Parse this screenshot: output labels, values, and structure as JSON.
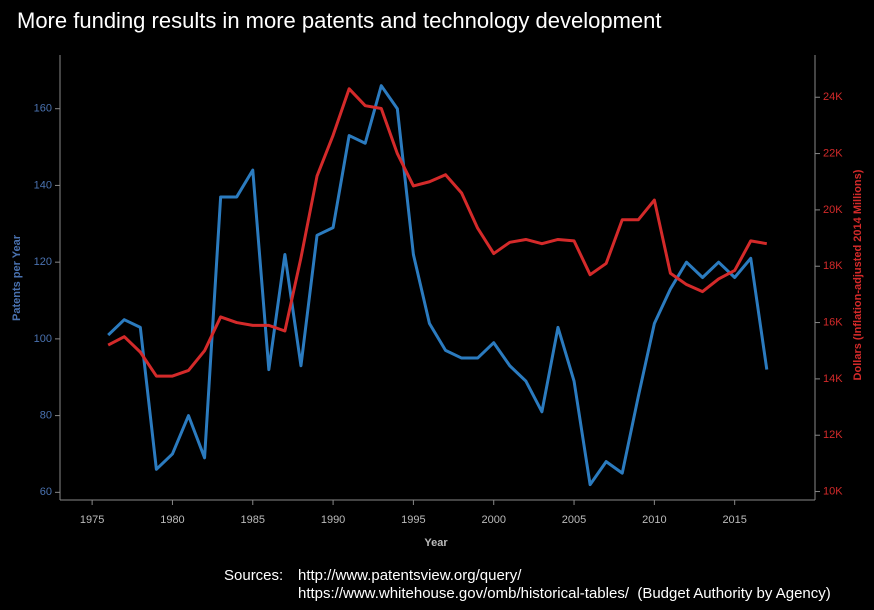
{
  "chart_data": {
    "type": "line",
    "title": "More funding results in more patents and technology development",
    "x_label": "Year",
    "y_label": "Patents per Year",
    "y2_label": "Dollars (Inflation-adjusted 2014 Millions)",
    "x": [
      1976,
      1977,
      1978,
      1979,
      1980,
      1981,
      1982,
      1983,
      1984,
      1985,
      1986,
      1987,
      1988,
      1989,
      1990,
      1991,
      1992,
      1993,
      1994,
      1995,
      1996,
      1997,
      1998,
      1999,
      2000,
      2001,
      2002,
      2003,
      2004,
      2005,
      2006,
      2007,
      2008,
      2009,
      2010,
      2011,
      2012,
      2013,
      2014,
      2015,
      2016,
      2017
    ],
    "series": [
      {
        "color": "#2b7bbf",
        "axis": "y",
        "values": [
          101,
          105,
          103,
          66,
          70,
          80,
          69,
          137,
          137,
          144,
          92,
          122,
          93,
          127,
          129,
          153,
          151,
          166,
          160,
          122,
          104,
          97,
          95,
          95,
          99,
          93,
          89,
          81,
          103,
          89,
          62,
          68,
          65,
          85,
          104,
          113,
          120,
          116,
          120,
          116,
          121,
          92
        ]
      },
      {
        "color": "#d42a2a",
        "axis": "y2",
        "values": [
          15200,
          15500,
          14950,
          14100,
          14100,
          14300,
          15000,
          16200,
          16000,
          15900,
          15900,
          15700,
          18300,
          21200,
          22650,
          24300,
          23700,
          23600,
          22000,
          20850,
          21000,
          21250,
          20600,
          19350,
          18450,
          18850,
          18950,
          18800,
          18950,
          18900,
          17700,
          18100,
          19650,
          19650,
          20350,
          17750,
          17350,
          17100,
          17550,
          17850,
          18900,
          18800
        ]
      }
    ],
    "xlim": [
      1973,
      2020
    ],
    "xticks": [
      1975,
      1980,
      1985,
      1990,
      1995,
      2000,
      2005,
      2010,
      2015
    ],
    "ylim": [
      58,
      174
    ],
    "yticks": [
      60,
      80,
      100,
      120,
      140,
      160
    ],
    "y2lim": [
      9700,
      25500
    ],
    "y2ticks": [
      {
        "value": 10000,
        "label": "10K"
      },
      {
        "value": 12000,
        "label": "12K"
      },
      {
        "value": 14000,
        "label": "14K"
      },
      {
        "value": 16000,
        "label": "16K"
      },
      {
        "value": 18000,
        "label": "18K"
      },
      {
        "value": 20000,
        "label": "20K"
      },
      {
        "value": 22000,
        "label": "22K"
      },
      {
        "value": 24000,
        "label": "24K"
      }
    ],
    "y_tick_color": "#4a72b0",
    "y2_tick_color": "#d42a2a",
    "grid": false,
    "sources_label": "Sources:",
    "sources": [
      "http://www.patentsview.org/query/",
      "https://www.whitehouse.gov/omb/historical-tables/  (Budget Authority by Agency)"
    ]
  }
}
